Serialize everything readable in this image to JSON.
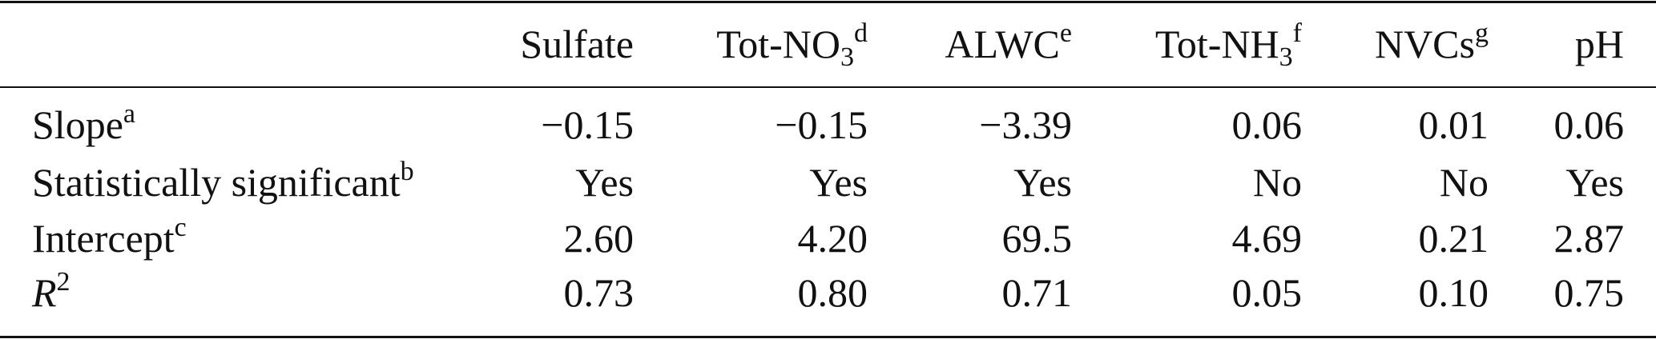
{
  "table": {
    "columns": [
      {
        "text": "Sulfate"
      },
      {
        "text": "Tot-NO",
        "sub": "3",
        "sup": "d"
      },
      {
        "text": "ALWC",
        "sup": "e"
      },
      {
        "text": "Tot-NH",
        "sub": "3",
        "sup": "f"
      },
      {
        "text": "NVCs",
        "sup": "g"
      },
      {
        "text": "pH"
      }
    ],
    "rows": [
      {
        "label": {
          "text": "Slope",
          "sup": "a"
        },
        "cells": [
          "−0.15",
          "−0.15",
          "−3.39",
          "0.06",
          "0.01",
          "0.06"
        ]
      },
      {
        "label": {
          "text": "Statistically significant",
          "sup": "b"
        },
        "cells": [
          "Yes",
          "Yes",
          "Yes",
          "No",
          "No",
          "Yes"
        ]
      },
      {
        "label": {
          "text": "Intercept",
          "sup": "c"
        },
        "cells": [
          "2.60",
          "4.20",
          "69.5",
          "4.69",
          "0.21",
          "2.87"
        ]
      },
      {
        "label": {
          "text": "R",
          "sup": "2"
        },
        "cells": [
          "0.73",
          "0.80",
          "0.71",
          "0.05",
          "0.10",
          "0.75"
        ]
      }
    ]
  }
}
